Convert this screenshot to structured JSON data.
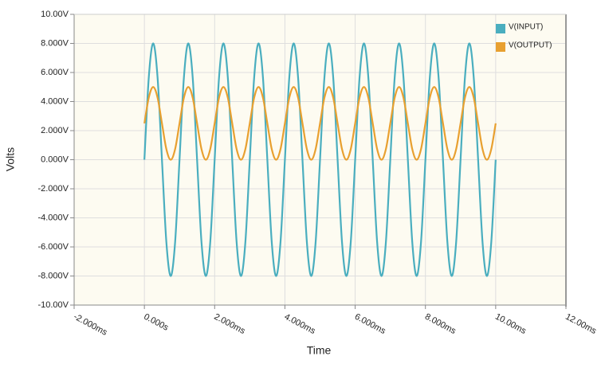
{
  "chart_data": {
    "type": "line",
    "x_label": "Time",
    "y_label": "Volts",
    "x": [
      0,
      0.125,
      0.25,
      0.375,
      0.5,
      0.625,
      0.75,
      0.875,
      1,
      1.125,
      1.25,
      1.375,
      1.5,
      1.625,
      1.75,
      1.875,
      2,
      2.125,
      2.25,
      2.375,
      2.5,
      2.625,
      2.75,
      2.875,
      3,
      3.125,
      3.25,
      3.375,
      3.5,
      3.625,
      3.75,
      3.875,
      4,
      4.125,
      4.25,
      4.375,
      4.5,
      4.625,
      4.75,
      4.875,
      5,
      5.125,
      5.25,
      5.375,
      5.5,
      5.625,
      5.75,
      5.875,
      6,
      6.125,
      6.25,
      6.375,
      6.5,
      6.625,
      6.75,
      6.875,
      7,
      7.125,
      7.25,
      7.375,
      7.5,
      7.625,
      7.75,
      7.875,
      8,
      8.125,
      8.25,
      8.375,
      8.5,
      8.625,
      8.75,
      8.875,
      9,
      9.125,
      9.25,
      9.375,
      9.5,
      9.625,
      9.75,
      9.875,
      10
    ],
    "series": [
      {
        "name": "V(INPUT)",
        "color": "#4aaebf",
        "values": [
          0,
          5.657,
          8,
          5.657,
          0,
          -5.657,
          -8,
          -5.657,
          0,
          5.657,
          8,
          5.657,
          0,
          -5.657,
          -8,
          -5.657,
          0,
          5.657,
          8,
          5.657,
          0,
          -5.657,
          -8,
          -5.657,
          0,
          5.657,
          8,
          5.657,
          0,
          -5.657,
          -8,
          -5.657,
          0,
          5.657,
          8,
          5.657,
          0,
          -5.657,
          -8,
          -5.657,
          0,
          5.657,
          8,
          5.657,
          0,
          -5.657,
          -8,
          -5.657,
          0,
          5.657,
          8,
          5.657,
          0,
          -5.657,
          -8,
          -5.657,
          0,
          5.657,
          8,
          5.657,
          0,
          -5.657,
          -8,
          -5.657,
          0,
          5.657,
          8,
          5.657,
          0,
          -5.657,
          -8,
          -5.657,
          0,
          5.657,
          8,
          5.657,
          0,
          -5.657,
          -8,
          -5.657,
          0
        ]
      },
      {
        "name": "V(OUTPUT)",
        "color": "#e8a030",
        "values": [
          2.5,
          4.268,
          5,
          4.268,
          2.5,
          0.732,
          0,
          0.732,
          2.5,
          4.268,
          5,
          4.268,
          2.5,
          0.732,
          0,
          0.732,
          2.5,
          4.268,
          5,
          4.268,
          2.5,
          0.732,
          0,
          0.732,
          2.5,
          4.268,
          5,
          4.268,
          2.5,
          0.732,
          0,
          0.732,
          2.5,
          4.268,
          5,
          4.268,
          2.5,
          0.732,
          0,
          0.732,
          2.5,
          4.268,
          5,
          4.268,
          2.5,
          0.732,
          0,
          0.732,
          2.5,
          4.268,
          5,
          4.268,
          2.5,
          0.732,
          0,
          0.732,
          2.5,
          4.268,
          5,
          4.268,
          2.5,
          0.732,
          0,
          0.732,
          2.5,
          4.268,
          5,
          4.268,
          2.5,
          0.732,
          0,
          0.732,
          2.5,
          4.268,
          5,
          4.268,
          2.5,
          0.732,
          0,
          0.732,
          2.5
        ]
      }
    ],
    "xlim": [
      -2,
      12
    ],
    "xticks": [
      {
        "value": -2,
        "label": "-2.000ms"
      },
      {
        "value": 0,
        "label": "0.000s"
      },
      {
        "value": 2,
        "label": "2.000ms"
      },
      {
        "value": 4,
        "label": "4.000ms"
      },
      {
        "value": 6,
        "label": "6.000ms"
      },
      {
        "value": 8,
        "label": "8.000ms"
      },
      {
        "value": 10,
        "label": "10.00ms"
      },
      {
        "value": 12,
        "label": "12.00ms"
      }
    ],
    "ylim": [
      -10,
      10
    ],
    "yticks": [
      {
        "value": -10,
        "label": "-10.00V"
      },
      {
        "value": -8,
        "label": "-8.000V"
      },
      {
        "value": -6,
        "label": "-6.000V"
      },
      {
        "value": -4,
        "label": "-4.000V"
      },
      {
        "value": -2,
        "label": "-2.000V"
      },
      {
        "value": 0,
        "label": "0.000V"
      },
      {
        "value": 2,
        "label": "2.000V"
      },
      {
        "value": 4,
        "label": "4.000V"
      },
      {
        "value": 6,
        "label": "6.000V"
      },
      {
        "value": 8,
        "label": "8.000V"
      },
      {
        "value": 10,
        "label": "10.00V"
      }
    ],
    "grid": true,
    "legend": "top-right"
  }
}
